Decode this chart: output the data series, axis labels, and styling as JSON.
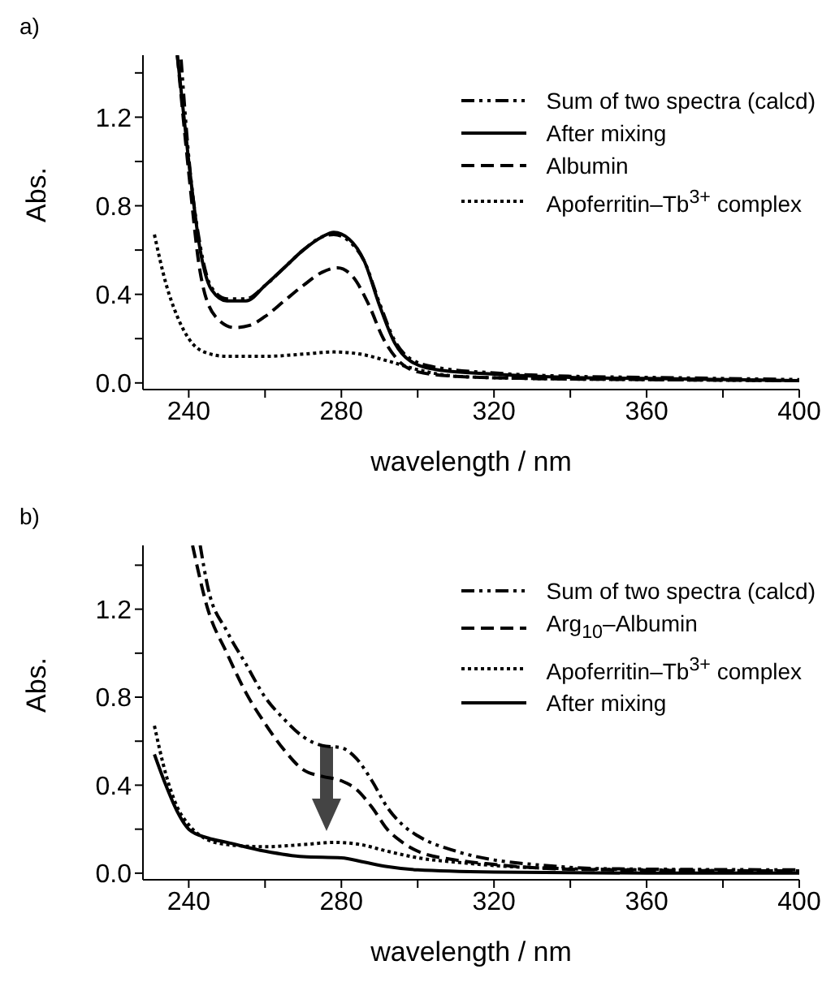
{
  "chart_data": [
    {
      "type": "line",
      "title": "a)",
      "xlabel": "wavelength / nm",
      "ylabel": "Abs.",
      "xlim": [
        228,
        400
      ],
      "ylim": [
        -0.03,
        1.48
      ],
      "xticks": [
        240,
        {
          "value": 260,
          "label": null
        },
        280,
        {
          "value": 300,
          "label": null
        },
        320,
        {
          "value": 340,
          "label": null
        },
        360,
        {
          "value": 380,
          "label": null
        },
        400
      ],
      "yticks": [
        {
          "value": 0,
          "label": "0.0"
        },
        {
          "value": 0.2,
          "label": null
        },
        0.4,
        {
          "value": 0.6,
          "label": null
        },
        0.8,
        {
          "value": 1.0,
          "label": null
        },
        1.2,
        {
          "value": 1.4,
          "label": null
        }
      ],
      "legend": "top right",
      "grid": false,
      "series": [
        {
          "name": "Sum of two spectra (calcd)",
          "color": "#000000",
          "line_style": "dashdot",
          "x": [
            238,
            240,
            243,
            246,
            250,
            255,
            260,
            265,
            270,
            275,
            278,
            282,
            286,
            290,
            294,
            298,
            305,
            320,
            340,
            360,
            400
          ],
          "values": [
            1.46,
            1.02,
            0.62,
            0.43,
            0.38,
            0.38,
            0.44,
            0.52,
            0.6,
            0.66,
            0.67,
            0.64,
            0.55,
            0.36,
            0.19,
            0.11,
            0.07,
            0.045,
            0.03,
            0.025,
            0.015
          ]
        },
        {
          "name": "After mixing",
          "color": "#000000",
          "line_style": "solid",
          "x": [
            237,
            240,
            243,
            246,
            250,
            255,
            260,
            265,
            270,
            275,
            278,
            282,
            286,
            290,
            294,
            298,
            305,
            320,
            340,
            360,
            400
          ],
          "values": [
            1.48,
            1.0,
            0.6,
            0.42,
            0.37,
            0.37,
            0.44,
            0.52,
            0.6,
            0.66,
            0.68,
            0.65,
            0.55,
            0.35,
            0.18,
            0.1,
            0.06,
            0.04,
            0.025,
            0.02,
            0.01
          ]
        },
        {
          "name": "Albumin",
          "color": "#000000",
          "line_style": "dashed",
          "x": [
            237,
            240,
            243,
            247,
            252,
            256,
            260,
            265,
            270,
            275,
            279,
            283,
            287,
            291,
            295,
            300,
            310,
            330,
            360,
            400
          ],
          "values": [
            1.48,
            0.95,
            0.5,
            0.3,
            0.25,
            0.26,
            0.3,
            0.37,
            0.44,
            0.5,
            0.52,
            0.48,
            0.36,
            0.2,
            0.1,
            0.05,
            0.03,
            0.02,
            0.015,
            0.01
          ]
        },
        {
          "name": "Apoferritin–Tb$^{3+}$ complex",
          "color": "#000000",
          "line_style": "dotted",
          "x": [
            231,
            234,
            237,
            240,
            244,
            250,
            260,
            270,
            278,
            285,
            292,
            300,
            310,
            330,
            360,
            400
          ],
          "values": [
            0.67,
            0.45,
            0.3,
            0.2,
            0.14,
            0.12,
            0.12,
            0.13,
            0.14,
            0.13,
            0.1,
            0.06,
            0.03,
            0.02,
            0.015,
            0.01
          ]
        }
      ]
    },
    {
      "type": "line",
      "title": "b)",
      "xlabel": "wavelength / nm",
      "ylabel": "Abs.",
      "xlim": [
        228,
        400
      ],
      "ylim": [
        -0.03,
        1.49
      ],
      "xticks": [
        240,
        {
          "value": 260,
          "label": null
        },
        280,
        {
          "value": 300,
          "label": null
        },
        320,
        {
          "value": 340,
          "label": null
        },
        360,
        {
          "value": 380,
          "label": null
        },
        400
      ],
      "yticks": [
        {
          "value": 0,
          "label": "0.0"
        },
        {
          "value": 0.2,
          "label": null
        },
        0.4,
        {
          "value": 0.6,
          "label": null
        },
        0.8,
        {
          "value": 1.0,
          "label": null
        },
        1.2,
        {
          "value": 1.4,
          "label": null
        }
      ],
      "legend": "top right",
      "grid": false,
      "series": [
        {
          "name": "Sum of two spectra (calcd)",
          "color": "#000000",
          "line_style": "dashdot",
          "x": [
            243,
            245,
            250,
            255,
            260,
            265,
            270,
            275,
            280,
            284,
            288,
            292,
            296,
            300,
            310,
            320,
            330,
            350,
            400
          ],
          "values": [
            1.49,
            1.3,
            1.1,
            0.95,
            0.8,
            0.7,
            0.62,
            0.58,
            0.57,
            0.52,
            0.42,
            0.3,
            0.22,
            0.17,
            0.1,
            0.06,
            0.04,
            0.02,
            0.015
          ]
        },
        {
          "name": "Arg$_{10}$–Albumin",
          "color": "#000000",
          "line_style": "dashed",
          "x": [
            241,
            245,
            250,
            255,
            260,
            265,
            270,
            275,
            280,
            284,
            288,
            292,
            296,
            300,
            310,
            320,
            330,
            350,
            400
          ],
          "values": [
            1.49,
            1.2,
            1.0,
            0.82,
            0.68,
            0.56,
            0.47,
            0.44,
            0.42,
            0.38,
            0.3,
            0.2,
            0.14,
            0.1,
            0.06,
            0.04,
            0.025,
            0.015,
            0.01
          ]
        },
        {
          "name": "Apoferritin–Tb$^{3+}$ complex",
          "color": "#000000",
          "line_style": "dotted",
          "x": [
            231,
            234,
            237,
            240,
            244,
            250,
            260,
            270,
            278,
            285,
            292,
            300,
            310,
            330,
            360,
            400
          ],
          "values": [
            0.67,
            0.45,
            0.3,
            0.22,
            0.16,
            0.13,
            0.12,
            0.13,
            0.14,
            0.13,
            0.1,
            0.07,
            0.05,
            0.025,
            0.015,
            0.01
          ]
        },
        {
          "name": "After mixing",
          "color": "#000000",
          "line_style": "solid",
          "x": [
            231,
            234,
            237,
            240,
            245,
            250,
            260,
            270,
            280,
            286,
            292,
            300,
            320,
            360,
            400
          ],
          "values": [
            0.54,
            0.4,
            0.28,
            0.2,
            0.16,
            0.14,
            0.1,
            0.075,
            0.07,
            0.05,
            0.03,
            0.015,
            0.005,
            0,
            0
          ]
        }
      ]
    }
  ]
}
